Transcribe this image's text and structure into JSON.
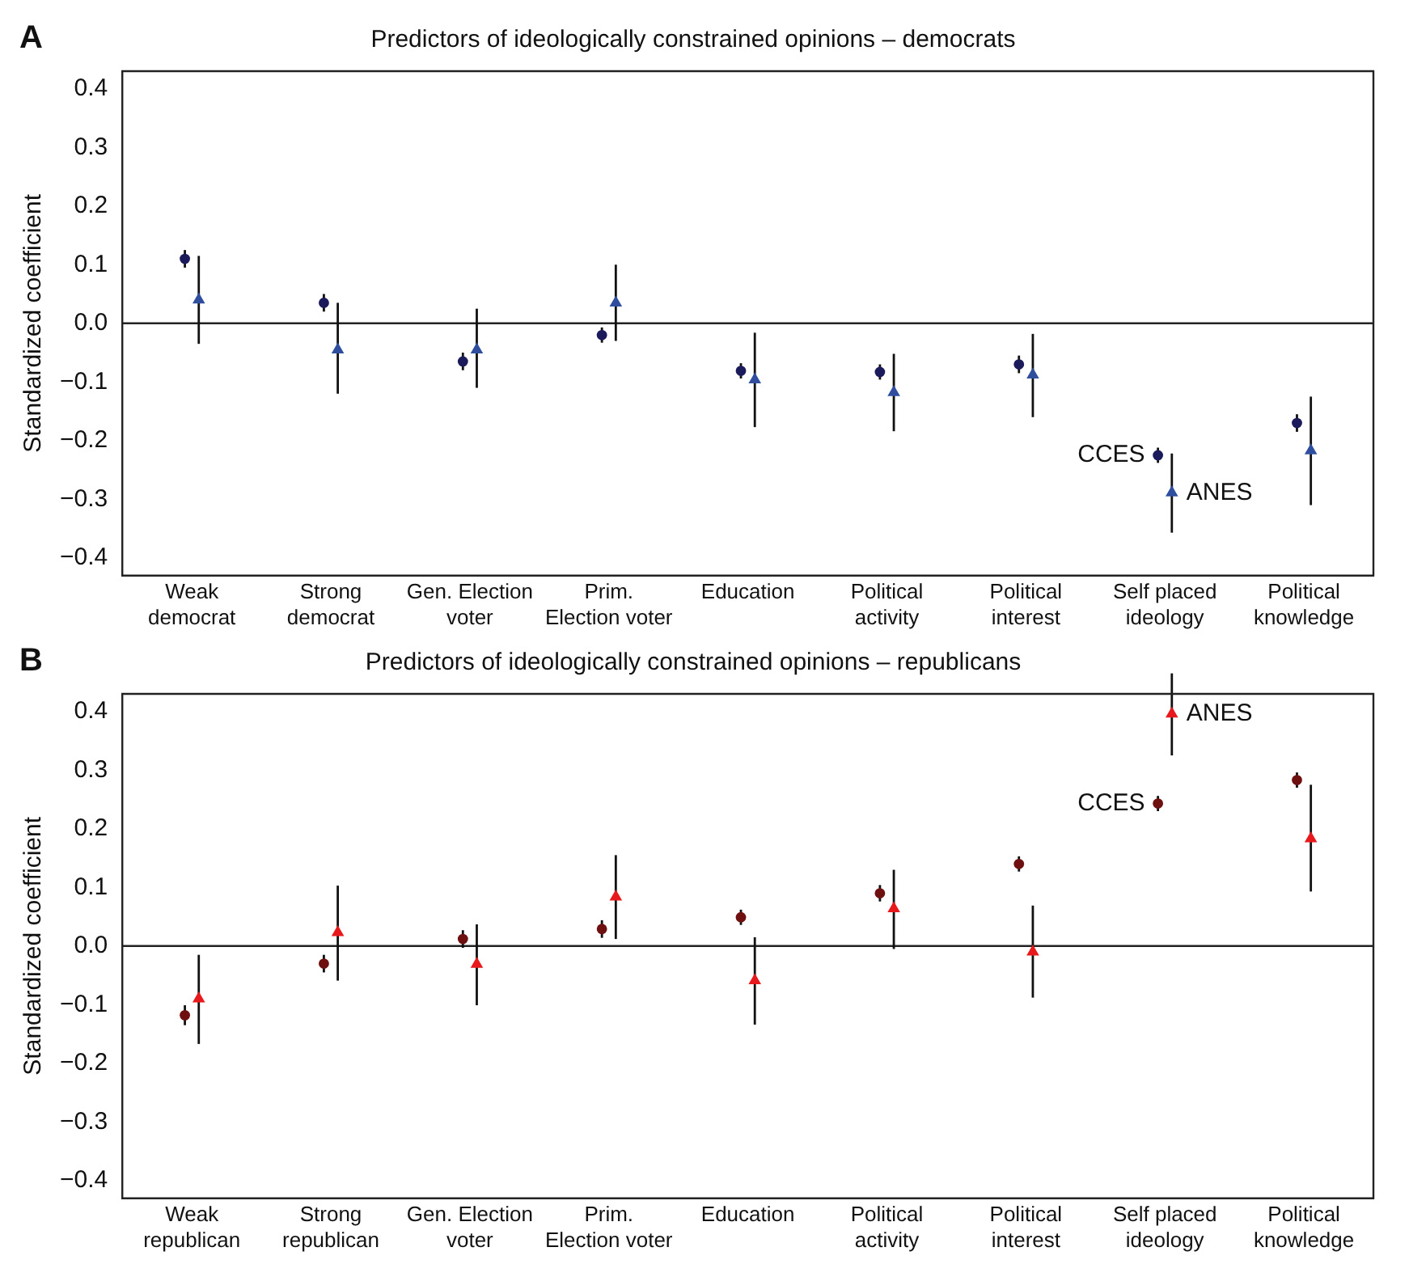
{
  "chart_data": [
    {
      "type": "scatter",
      "title": "Predictors of ideologically constrained opinions – democrats",
      "ylabel": "Standardized coefficient",
      "categories": [
        "Weak democrat",
        "Strong democrat",
        "Gen. Election voter",
        "Prim. Election voter",
        "Education",
        "Political activity",
        "Political interest",
        "Self placed ideology",
        "Political knowledge"
      ],
      "series": [
        {
          "color": "#1b1b5c",
          "marker": "circle",
          "values": [
            0.11,
            0.035,
            -0.065,
            -0.02,
            -0.081,
            -0.083,
            -0.07,
            -0.225,
            -0.17
          ],
          "errors": [
            0.015,
            0.015,
            0.015,
            0.013,
            0.013,
            0.013,
            0.015,
            0.013,
            0.015
          ]
        },
        {
          "color": "#2f4f9e",
          "marker": "triangle",
          "values": [
            0.04,
            -0.045,
            -0.045,
            0.035,
            -0.096,
            -0.118,
            -0.088,
            -0.289,
            -0.217
          ],
          "errors": [
            [
              -0.035,
              0.115
            ],
            [
              -0.12,
              0.035
            ],
            [
              -0.11,
              0.025
            ],
            [
              -0.03,
              0.1
            ],
            [
              -0.177,
              -0.016
            ],
            [
              -0.184,
              -0.052
            ],
            [
              -0.16,
              -0.018
            ],
            [
              -0.357,
              -0.222
            ],
            [
              -0.31,
              -0.125
            ]
          ]
        }
      ],
      "ylim": [
        -0.43,
        0.43
      ],
      "yticks": [
        {
          "value": -0.4,
          "label": "−0.4"
        },
        {
          "value": -0.3,
          "label": "−0.3"
        },
        {
          "value": -0.2,
          "label": "−0.2"
        },
        {
          "value": -0.1,
          "label": "−0.1"
        },
        {
          "value": 0,
          "label": "0.0"
        },
        0.1,
        0.2,
        0.3,
        0.4
      ],
      "ref_lines": [
        {
          "axis": "y",
          "value": 0,
          "color": "#222222"
        }
      ],
      "annotations": [
        "A",
        {
          "text": "CCES",
          "x": "Self placed ideology",
          "y": -0.225
        },
        {
          "text": "ANES",
          "x": "Self placed ideology",
          "y": -0.289
        }
      ],
      "grid": false,
      "legend": false
    },
    {
      "type": "scatter",
      "title": "Predictors of ideologically constrained opinions – republicans",
      "ylabel": "Standardized coefficient",
      "categories": [
        "Weak republican",
        "Strong republican",
        "Gen. Election voter",
        "Prim. Election voter",
        "Education",
        "Political activity",
        "Political interest",
        "Self placed ideology",
        "Political knowledge"
      ],
      "series": [
        {
          "color": "#6e1010",
          "marker": "circle",
          "values": [
            -0.118,
            -0.03,
            0.012,
            0.029,
            0.049,
            0.09,
            0.14,
            0.243,
            0.283
          ],
          "errors": [
            0.017,
            0.015,
            0.015,
            0.015,
            0.013,
            0.014,
            0.013,
            0.013,
            0.013
          ]
        },
        {
          "color": "#e8191c",
          "marker": "triangle",
          "values": [
            -0.09,
            0.023,
            -0.031,
            0.084,
            -0.059,
            0.064,
            -0.01,
            0.396,
            0.183
          ],
          "errors": [
            [
              -0.167,
              -0.015
            ],
            [
              -0.059,
              0.103
            ],
            [
              -0.101,
              0.037
            ],
            [
              0.012,
              0.155
            ],
            [
              -0.134,
              0.015
            ],
            [
              -0.005,
              0.13
            ],
            [
              -0.088,
              0.069
            ],
            [
              0.325,
              0.465
            ],
            [
              0.093,
              0.275
            ]
          ]
        }
      ],
      "ylim": [
        -0.43,
        0.43
      ],
      "yticks": [
        {
          "value": -0.4,
          "label": "−0.4"
        },
        {
          "value": -0.3,
          "label": "−0.3"
        },
        {
          "value": -0.2,
          "label": "−0.2"
        },
        {
          "value": -0.1,
          "label": "−0.1"
        },
        {
          "value": 0,
          "label": "0.0"
        },
        0.1,
        0.2,
        0.3,
        0.4
      ],
      "ref_lines": [
        {
          "axis": "y",
          "value": 0,
          "color": "#222222"
        }
      ],
      "annotations": [
        "B",
        {
          "text": "CCES",
          "x": "Self placed ideology",
          "y": 0.243
        },
        {
          "text": "ANES",
          "x": "Self placed ideology",
          "y": 0.396
        }
      ],
      "grid": false,
      "legend": false
    }
  ]
}
